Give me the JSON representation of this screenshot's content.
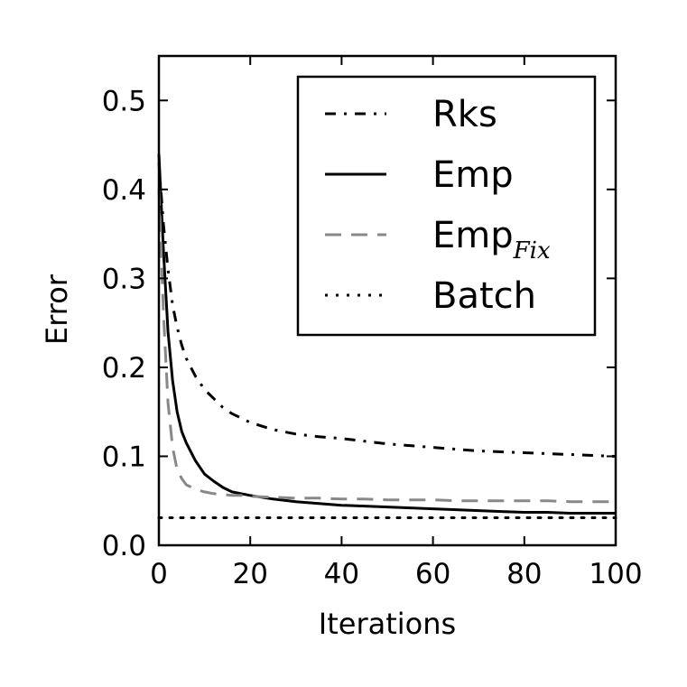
{
  "chart_data": {
    "type": "line",
    "xlabel": "Iterations",
    "ylabel": "Error",
    "xlim": [
      0,
      100
    ],
    "ylim": [
      0,
      0.55
    ],
    "xticks": [
      "0",
      "20",
      "40",
      "60",
      "80",
      "100"
    ],
    "yticks": [
      "0.0",
      "0.1",
      "0.2",
      "0.3",
      "0.4",
      "0.5"
    ],
    "grid": false,
    "legend_position": "top-right",
    "series": [
      {
        "name": "Rks",
        "legend_main": "Rks",
        "legend_sub": "",
        "style": "dashdot",
        "color": "#000000",
        "x": [
          0,
          1,
          2,
          3,
          4,
          5,
          6,
          8,
          10,
          12,
          14,
          16,
          18,
          20,
          25,
          30,
          35,
          40,
          45,
          50,
          55,
          60,
          65,
          70,
          75,
          80,
          85,
          90,
          95,
          100
        ],
        "y": [
          0.43,
          0.36,
          0.31,
          0.27,
          0.245,
          0.225,
          0.21,
          0.19,
          0.175,
          0.165,
          0.155,
          0.148,
          0.143,
          0.138,
          0.13,
          0.125,
          0.122,
          0.12,
          0.117,
          0.114,
          0.112,
          0.11,
          0.108,
          0.106,
          0.105,
          0.104,
          0.103,
          0.102,
          0.101,
          0.1
        ]
      },
      {
        "name": "Emp",
        "legend_main": "Emp",
        "legend_sub": "",
        "style": "solid",
        "color": "#000000",
        "x": [
          0,
          1,
          2,
          3,
          4,
          5,
          6,
          8,
          10,
          12,
          14,
          16,
          18,
          20,
          25,
          30,
          35,
          40,
          45,
          50,
          55,
          60,
          65,
          70,
          75,
          80,
          85,
          90,
          95,
          100
        ],
        "y": [
          0.44,
          0.33,
          0.24,
          0.185,
          0.15,
          0.128,
          0.115,
          0.095,
          0.08,
          0.072,
          0.065,
          0.06,
          0.058,
          0.056,
          0.052,
          0.049,
          0.047,
          0.045,
          0.044,
          0.043,
          0.042,
          0.041,
          0.04,
          0.039,
          0.038,
          0.037,
          0.037,
          0.036,
          0.036,
          0.036
        ]
      },
      {
        "name": "Emp_Fix",
        "legend_main": "Emp",
        "legend_sub": "Fix",
        "style": "dashed",
        "color": "#888888",
        "x": [
          0,
          1,
          2,
          3,
          4,
          5,
          6,
          8,
          10,
          12,
          14,
          16,
          18,
          20,
          25,
          30,
          35,
          40,
          45,
          50,
          55,
          60,
          65,
          70,
          75,
          80,
          85,
          90,
          95,
          100
        ],
        "y": [
          0.4,
          0.26,
          0.16,
          0.11,
          0.085,
          0.075,
          0.068,
          0.063,
          0.06,
          0.058,
          0.057,
          0.056,
          0.056,
          0.055,
          0.054,
          0.053,
          0.053,
          0.052,
          0.052,
          0.051,
          0.051,
          0.051,
          0.05,
          0.05,
          0.05,
          0.05,
          0.05,
          0.049,
          0.049,
          0.049
        ]
      },
      {
        "name": "Batch",
        "legend_main": "Batch",
        "legend_sub": "",
        "style": "dotted",
        "color": "#000000",
        "x": [
          0,
          100
        ],
        "y": [
          0.031,
          0.031
        ]
      }
    ]
  }
}
